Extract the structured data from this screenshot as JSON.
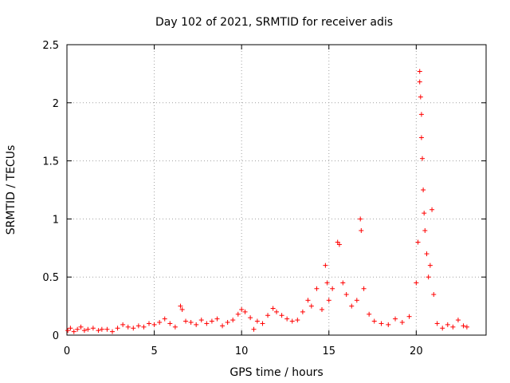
{
  "chart_data": {
    "type": "scatter",
    "title": "Day 102 of 2021, SRMTID for receiver adis",
    "xlabel": "GPS time / hours",
    "ylabel": "SRMTID / TECUs",
    "xlim": [
      0,
      24
    ],
    "ylim": [
      0,
      2.5
    ],
    "xticks": [
      0,
      5,
      10,
      15,
      20
    ],
    "yticks": [
      0,
      0.5,
      1,
      1.5,
      2,
      2.5
    ],
    "xtick_labels": [
      "0",
      "5",
      "10",
      "15",
      "20"
    ],
    "ytick_labels": [
      "0",
      "0.5",
      "1",
      "1.5",
      "2",
      "2.5"
    ],
    "grid": true,
    "marker": "+",
    "color": "#ff0000",
    "series": [
      {
        "name": "SRMTID",
        "points": [
          [
            0.05,
            0.04
          ],
          [
            0.2,
            0.06
          ],
          [
            0.4,
            0.03
          ],
          [
            0.6,
            0.05
          ],
          [
            0.8,
            0.07
          ],
          [
            1.0,
            0.04
          ],
          [
            1.2,
            0.05
          ],
          [
            1.5,
            0.06
          ],
          [
            1.8,
            0.04
          ],
          [
            2.0,
            0.05
          ],
          [
            2.3,
            0.05
          ],
          [
            2.6,
            0.03
          ],
          [
            2.9,
            0.06
          ],
          [
            3.2,
            0.09
          ],
          [
            3.5,
            0.07
          ],
          [
            3.8,
            0.06
          ],
          [
            4.1,
            0.08
          ],
          [
            4.4,
            0.07
          ],
          [
            4.7,
            0.1
          ],
          [
            5.0,
            0.09
          ],
          [
            5.3,
            0.11
          ],
          [
            5.6,
            0.14
          ],
          [
            5.9,
            0.1
          ],
          [
            6.2,
            0.07
          ],
          [
            6.5,
            0.25
          ],
          [
            6.6,
            0.22
          ],
          [
            6.8,
            0.12
          ],
          [
            7.1,
            0.11
          ],
          [
            7.4,
            0.09
          ],
          [
            7.7,
            0.13
          ],
          [
            8.0,
            0.1
          ],
          [
            8.3,
            0.12
          ],
          [
            8.6,
            0.14
          ],
          [
            8.9,
            0.08
          ],
          [
            9.2,
            0.11
          ],
          [
            9.5,
            0.13
          ],
          [
            9.8,
            0.18
          ],
          [
            10.0,
            0.22
          ],
          [
            10.2,
            0.2
          ],
          [
            10.5,
            0.15
          ],
          [
            10.7,
            0.05
          ],
          [
            10.9,
            0.12
          ],
          [
            11.2,
            0.1
          ],
          [
            11.5,
            0.17
          ],
          [
            11.8,
            0.23
          ],
          [
            12.0,
            0.2
          ],
          [
            12.3,
            0.17
          ],
          [
            12.6,
            0.14
          ],
          [
            12.9,
            0.12
          ],
          [
            13.2,
            0.13
          ],
          [
            13.5,
            0.2
          ],
          [
            13.8,
            0.3
          ],
          [
            14.0,
            0.25
          ],
          [
            14.3,
            0.4
          ],
          [
            14.6,
            0.22
          ],
          [
            14.8,
            0.6
          ],
          [
            14.9,
            0.45
          ],
          [
            15.0,
            0.3
          ],
          [
            15.2,
            0.4
          ],
          [
            15.5,
            0.8
          ],
          [
            15.6,
            0.78
          ],
          [
            15.8,
            0.45
          ],
          [
            16.0,
            0.35
          ],
          [
            16.3,
            0.25
          ],
          [
            16.6,
            0.3
          ],
          [
            16.8,
            1.0
          ],
          [
            16.85,
            0.9
          ],
          [
            17.0,
            0.4
          ],
          [
            17.3,
            0.18
          ],
          [
            17.6,
            0.12
          ],
          [
            18.0,
            0.1
          ],
          [
            18.4,
            0.09
          ],
          [
            18.8,
            0.14
          ],
          [
            19.2,
            0.11
          ],
          [
            19.6,
            0.16
          ],
          [
            20.0,
            0.45
          ],
          [
            20.1,
            0.8
          ],
          [
            20.2,
            2.27
          ],
          [
            20.2,
            2.18
          ],
          [
            20.25,
            2.05
          ],
          [
            20.3,
            1.9
          ],
          [
            20.3,
            1.7
          ],
          [
            20.35,
            1.52
          ],
          [
            20.4,
            1.25
          ],
          [
            20.45,
            1.05
          ],
          [
            20.5,
            0.9
          ],
          [
            20.6,
            0.7
          ],
          [
            20.7,
            0.5
          ],
          [
            20.8,
            0.6
          ],
          [
            20.9,
            1.08
          ],
          [
            21.0,
            0.35
          ],
          [
            21.2,
            0.1
          ],
          [
            21.5,
            0.06
          ],
          [
            21.8,
            0.09
          ],
          [
            22.1,
            0.07
          ],
          [
            22.4,
            0.13
          ],
          [
            22.7,
            0.08
          ],
          [
            22.9,
            0.07
          ]
        ]
      }
    ]
  }
}
